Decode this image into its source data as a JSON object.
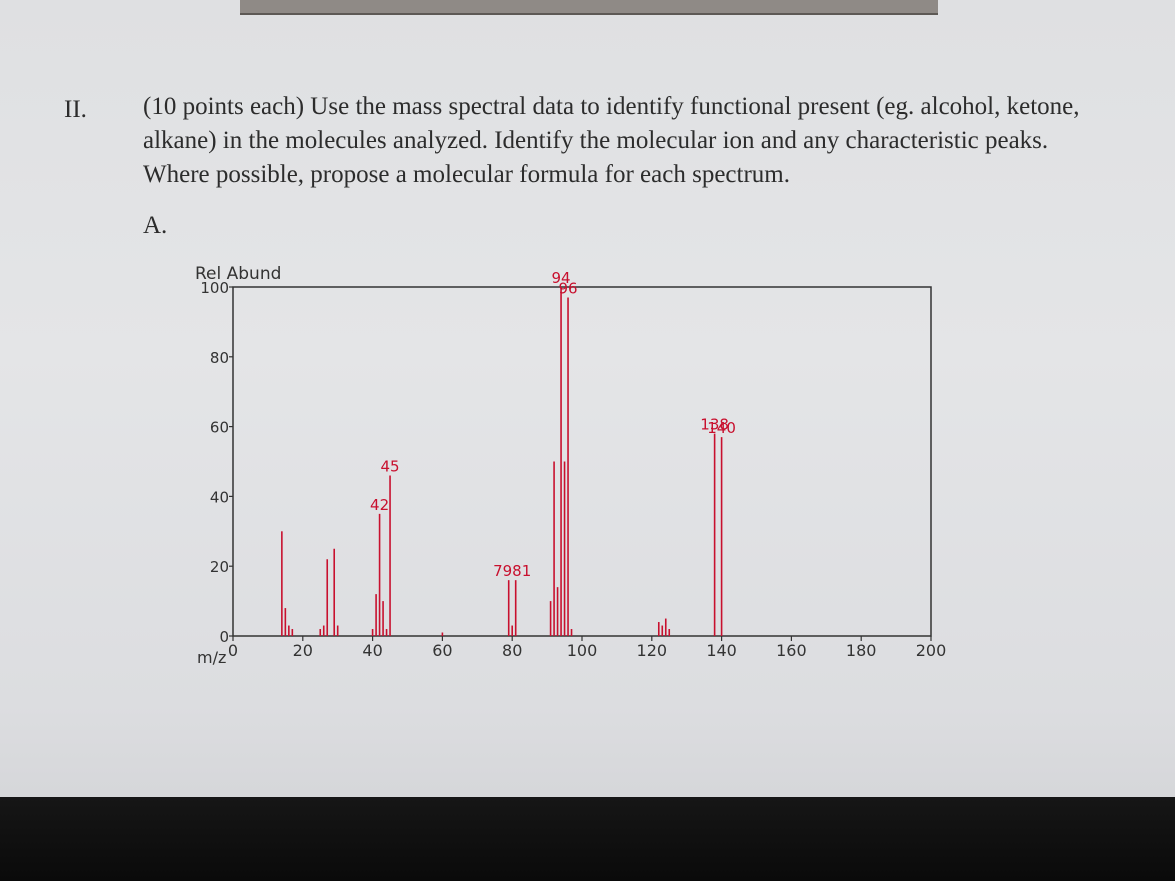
{
  "question": {
    "number": "II.",
    "text": "(10 points each) Use the mass spectral data to identify functional present (eg. alcohol, ketone, alkane) in the molecules analyzed. Identify the molecular ion and any characteristic peaks. Where possible, propose a molecular formula for each spectrum.",
    "part": "A."
  },
  "colors": {
    "bar": "#c8102e",
    "peak_label": "#c8102e",
    "axis": "#333333"
  },
  "chart_data": {
    "type": "bar",
    "ylabel": "Rel Abund",
    "xlabel": "m/z",
    "xlim": [
      0,
      200
    ],
    "ylim": [
      0,
      100
    ],
    "x_ticks": [
      0,
      20,
      40,
      60,
      80,
      100,
      120,
      140,
      160,
      180,
      200
    ],
    "y_ticks": [
      0,
      20,
      40,
      60,
      80,
      100
    ],
    "peaks": [
      {
        "x": 14,
        "y": 30
      },
      {
        "x": 15,
        "y": 8
      },
      {
        "x": 16,
        "y": 3
      },
      {
        "x": 17,
        "y": 2
      },
      {
        "x": 25,
        "y": 2
      },
      {
        "x": 26,
        "y": 3
      },
      {
        "x": 27,
        "y": 22
      },
      {
        "x": 29,
        "y": 25
      },
      {
        "x": 30,
        "y": 3
      },
      {
        "x": 40,
        "y": 2
      },
      {
        "x": 41,
        "y": 12
      },
      {
        "x": 42,
        "y": 35
      },
      {
        "x": 43,
        "y": 10
      },
      {
        "x": 44,
        "y": 2
      },
      {
        "x": 45,
        "y": 46
      },
      {
        "x": 60,
        "y": 1
      },
      {
        "x": 79,
        "y": 16
      },
      {
        "x": 80,
        "y": 3
      },
      {
        "x": 81,
        "y": 16
      },
      {
        "x": 91,
        "y": 10
      },
      {
        "x": 92,
        "y": 50
      },
      {
        "x": 93,
        "y": 14
      },
      {
        "x": 94,
        "y": 100
      },
      {
        "x": 95,
        "y": 50
      },
      {
        "x": 96,
        "y": 97
      },
      {
        "x": 97,
        "y": 2
      },
      {
        "x": 122,
        "y": 4
      },
      {
        "x": 123,
        "y": 3
      },
      {
        "x": 124,
        "y": 5
      },
      {
        "x": 125,
        "y": 2
      },
      {
        "x": 138,
        "y": 58
      },
      {
        "x": 140,
        "y": 57
      }
    ],
    "labels": [
      {
        "text": "42",
        "x": 42,
        "y": 35
      },
      {
        "text": "45",
        "x": 45,
        "y": 46
      },
      {
        "text": "7981",
        "x": 80,
        "y": 16
      },
      {
        "text": "94",
        "x": 94,
        "y": 100
      },
      {
        "text": "96",
        "x": 96,
        "y": 97
      },
      {
        "text": "138",
        "x": 138,
        "y": 58
      },
      {
        "text": "140",
        "x": 140,
        "y": 57
      }
    ]
  }
}
